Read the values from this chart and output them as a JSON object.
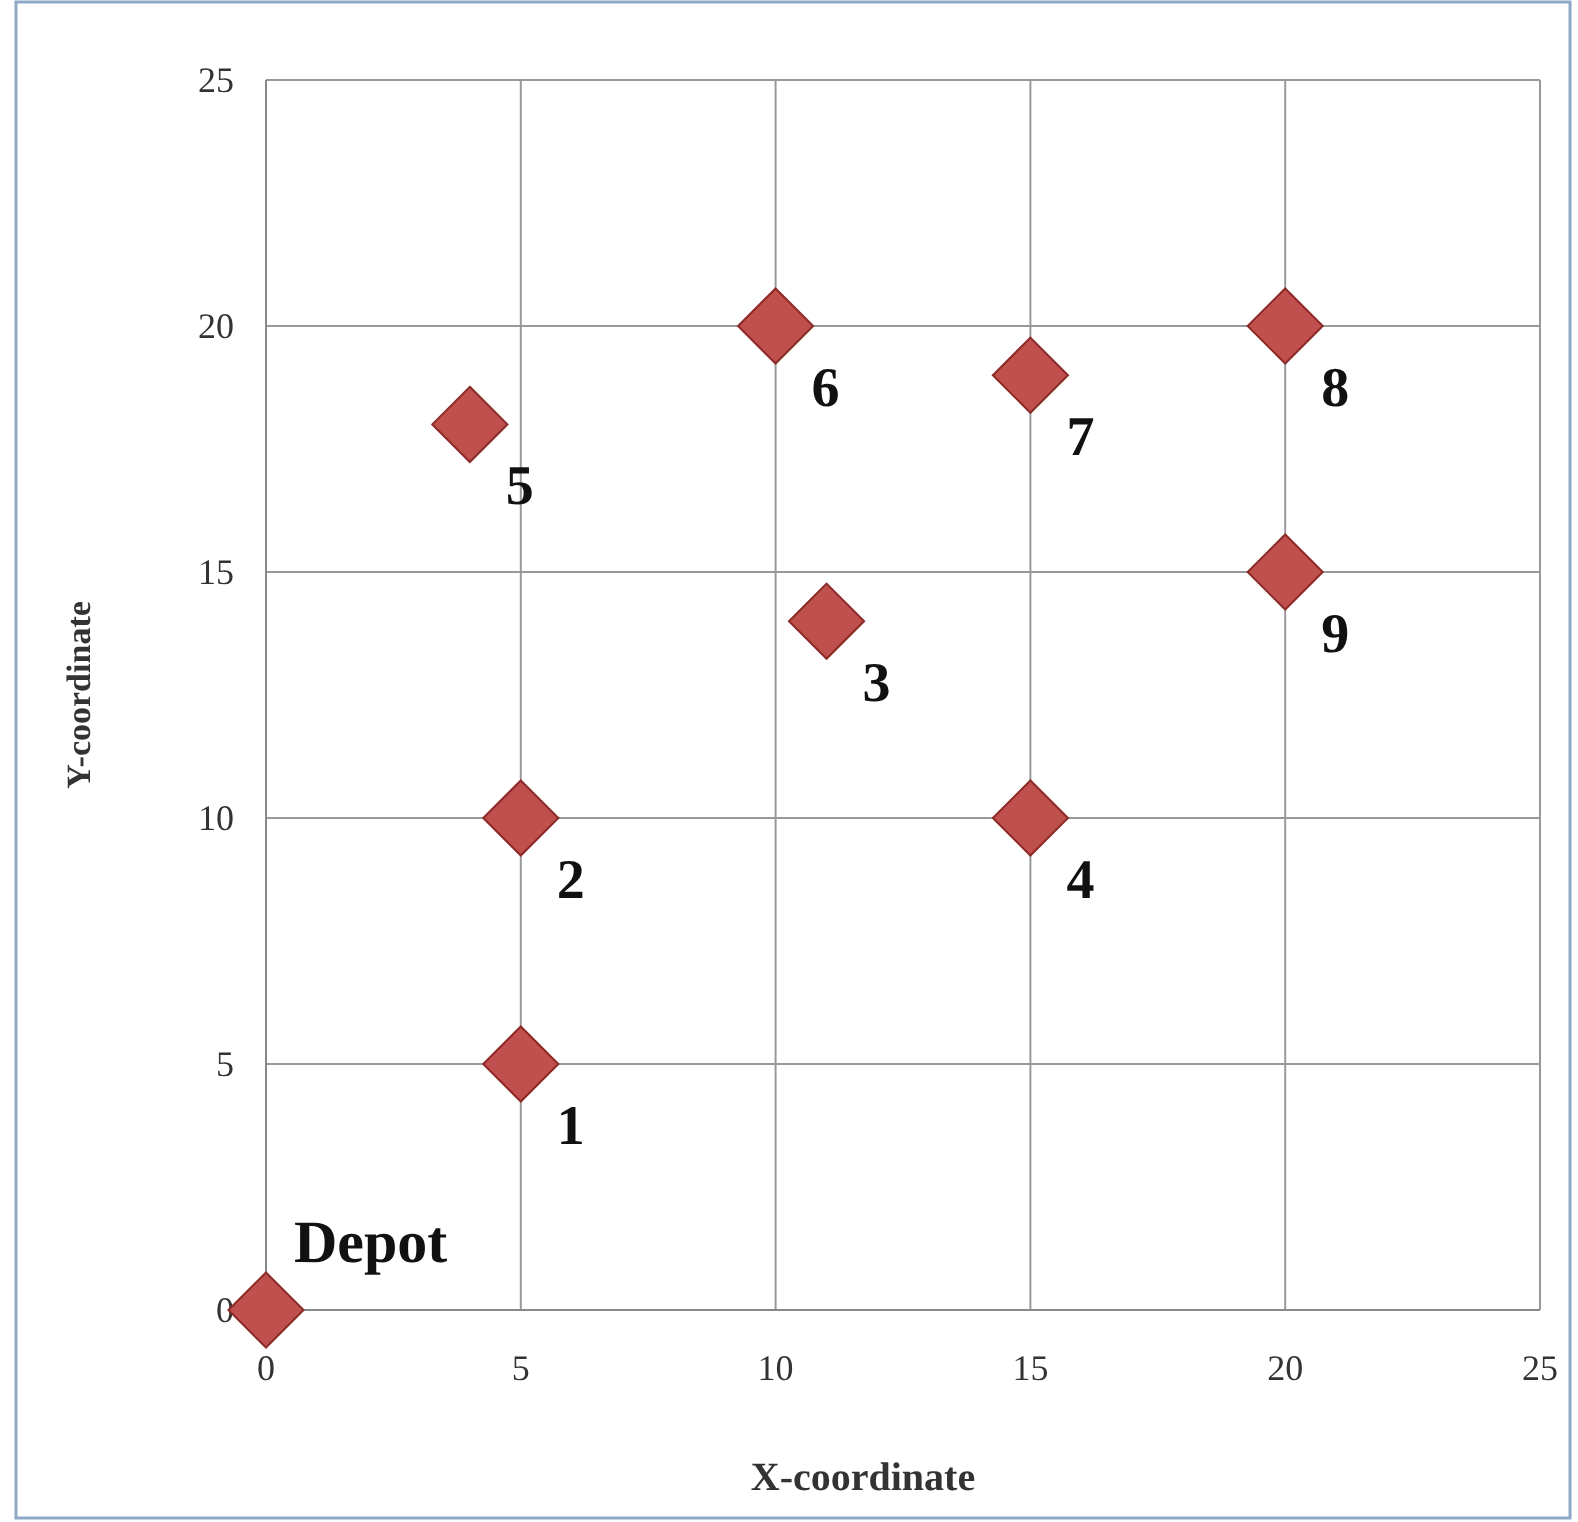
{
  "chart_data": {
    "type": "scatter",
    "xlabel": "X-coordinate",
    "ylabel": "Y-coordinate",
    "x": [
      0,
      5,
      5,
      11,
      15,
      4,
      10,
      15,
      20,
      20
    ],
    "values": [
      0,
      5,
      10,
      14,
      10,
      18,
      20,
      19,
      20,
      15
    ],
    "color": "#c0504d",
    "marker": "diamond",
    "grid": true,
    "xlim": [
      0,
      25
    ],
    "xticks": [
      0,
      5,
      10,
      15,
      20,
      25
    ],
    "ylim": [
      0,
      25
    ],
    "yticks": [
      0,
      5,
      10,
      15,
      20,
      25
    ],
    "annotations": [
      {
        "text": "Depot",
        "x": 0,
        "y": 0
      },
      {
        "text": "1",
        "x": 5,
        "y": 5
      },
      {
        "text": "2",
        "x": 5,
        "y": 10
      },
      {
        "text": "3",
        "x": 11,
        "y": 14
      },
      {
        "text": "4",
        "x": 15,
        "y": 10
      },
      {
        "text": "5",
        "x": 4,
        "y": 18
      },
      {
        "text": "6",
        "x": 10,
        "y": 20
      },
      {
        "text": "7",
        "x": 15,
        "y": 19
      },
      {
        "text": "8",
        "x": 20,
        "y": 20
      },
      {
        "text": "9",
        "x": 20,
        "y": 15
      }
    ]
  }
}
